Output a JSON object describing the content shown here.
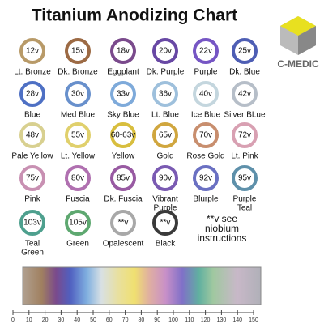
{
  "header": {
    "title": "Titanium Anodizing Chart",
    "logo": "C-MEDIC"
  },
  "rings": [
    {
      "voltage": "12v",
      "name": [
        "Lt. Bronze"
      ],
      "color": "#b89a68"
    },
    {
      "voltage": "15v",
      "name": [
        "Dk. Bronze"
      ],
      "color": "#9c6a44"
    },
    {
      "voltage": "18v",
      "name": [
        "Eggplant"
      ],
      "color": "#7a4a8c"
    },
    {
      "voltage": "20v",
      "name": [
        "Dk. Purple"
      ],
      "color": "#6848a4"
    },
    {
      "voltage": "22v",
      "name": [
        "Purple"
      ],
      "color": "#7656c4"
    },
    {
      "voltage": "25v",
      "name": [
        "Dk. Blue"
      ],
      "color": "#4e5eb4"
    },
    {
      "voltage": "28v",
      "name": [
        "Blue"
      ],
      "color": "#4e70c4"
    },
    {
      "voltage": "30v",
      "name": [
        "Med Blue"
      ],
      "color": "#6890cc"
    },
    {
      "voltage": "33v",
      "name": [
        "Sky Blue"
      ],
      "color": "#7eaada"
    },
    {
      "voltage": "36v",
      "name": [
        "Lt. Blue"
      ],
      "color": "#9ec0dc"
    },
    {
      "voltage": "40v",
      "name": [
        "Ice Blue"
      ],
      "color": "#c4d6de"
    },
    {
      "voltage": "42v",
      "name": [
        "Silver BLue"
      ],
      "color": "#b6bec8"
    },
    {
      "voltage": "48v",
      "name": [
        "Pale Yellow"
      ],
      "color": "#d8d090"
    },
    {
      "voltage": "55v",
      "name": [
        "Lt. Yellow"
      ],
      "color": "#e0d06c"
    },
    {
      "voltage": "60-63v",
      "name": [
        "Yellow"
      ],
      "color": "#d8be3e"
    },
    {
      "voltage": "65v",
      "name": [
        "Gold"
      ],
      "color": "#d0a63e"
    },
    {
      "voltage": "70v",
      "name": [
        "Rose Gold"
      ],
      "color": "#c88e6e"
    },
    {
      "voltage": "72v",
      "name": [
        "Lt. Pink"
      ],
      "color": "#d8a0b2"
    },
    {
      "voltage": "75v",
      "name": [
        "Pink"
      ],
      "color": "#c890b2"
    },
    {
      "voltage": "80v",
      "name": [
        "Fuscia"
      ],
      "color": "#b070b0"
    },
    {
      "voltage": "85v",
      "name": [
        "Dk. Fuscia"
      ],
      "color": "#985aa2"
    },
    {
      "voltage": "90v",
      "name": [
        "Vibrant",
        "Purple"
      ],
      "color": "#7a5ab2"
    },
    {
      "voltage": "92v",
      "name": [
        "Blurple"
      ],
      "color": "#6a70c2"
    },
    {
      "voltage": "95v",
      "name": [
        "Purple",
        "Teal"
      ],
      "color": "#5e90aa"
    },
    {
      "voltage": "103v",
      "name": [
        "Teal",
        "Green"
      ],
      "color": "#4ea08e"
    },
    {
      "voltage": "105v",
      "name": [
        "Green"
      ],
      "color": "#5ea870"
    },
    {
      "voltage": "**v",
      "name": [
        "Opalescent"
      ],
      "color": "#a8a8a8"
    },
    {
      "voltage": "**v",
      "name": [
        "Black"
      ],
      "color": "#3a3a3a"
    }
  ],
  "note": [
    "**v see",
    "niobium",
    "instructions"
  ],
  "scale": {
    "xlim": [
      0,
      150
    ],
    "ticks": [
      0,
      10,
      20,
      30,
      40,
      50,
      60,
      70,
      80,
      90,
      100,
      110,
      120,
      130,
      140,
      150
    ]
  }
}
